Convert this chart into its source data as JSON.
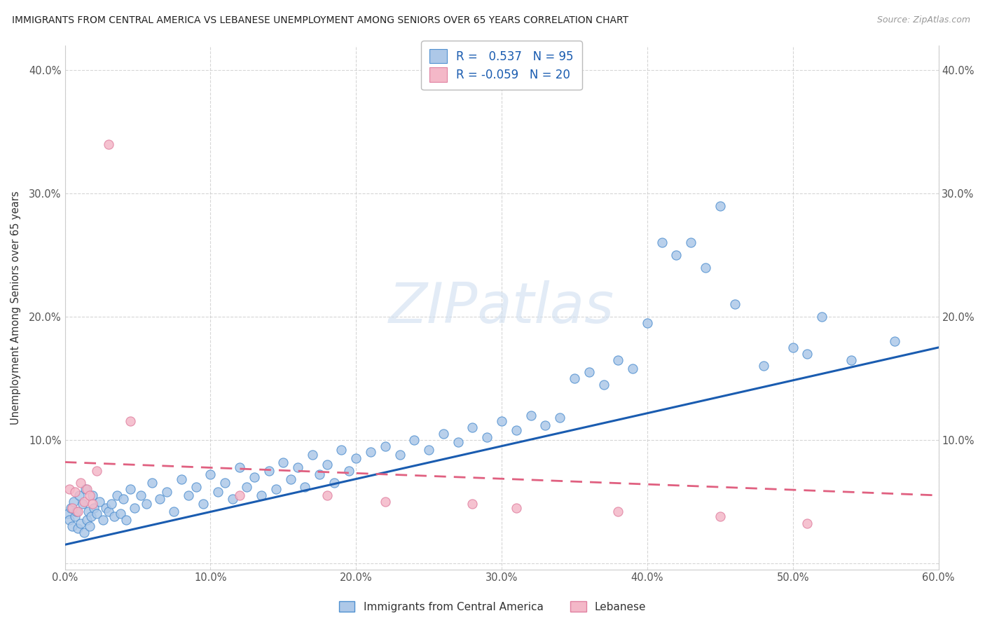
{
  "title": "IMMIGRANTS FROM CENTRAL AMERICA VS LEBANESE UNEMPLOYMENT AMONG SENIORS OVER 65 YEARS CORRELATION CHART",
  "source": "Source: ZipAtlas.com",
  "ylabel": "Unemployment Among Seniors over 65 years",
  "xlim": [
    0.0,
    0.6
  ],
  "ylim": [
    -0.005,
    0.42
  ],
  "blue_color": "#adc8e8",
  "pink_color": "#f4b8c8",
  "blue_edge_color": "#5090d0",
  "pink_edge_color": "#e080a0",
  "blue_line_color": "#1a5cb0",
  "pink_line_color": "#e06080",
  "watermark_color": "#d0dff0",
  "bottom_legend_blue": "Immigrants from Central America",
  "bottom_legend_pink": "Lebanese",
  "blue_x": [
    0.002,
    0.003,
    0.004,
    0.005,
    0.006,
    0.007,
    0.008,
    0.009,
    0.01,
    0.011,
    0.012,
    0.013,
    0.014,
    0.015,
    0.016,
    0.017,
    0.018,
    0.019,
    0.02,
    0.022,
    0.024,
    0.026,
    0.028,
    0.03,
    0.032,
    0.034,
    0.036,
    0.038,
    0.04,
    0.042,
    0.045,
    0.048,
    0.052,
    0.056,
    0.06,
    0.065,
    0.07,
    0.075,
    0.08,
    0.085,
    0.09,
    0.095,
    0.1,
    0.105,
    0.11,
    0.115,
    0.12,
    0.125,
    0.13,
    0.135,
    0.14,
    0.145,
    0.15,
    0.155,
    0.16,
    0.165,
    0.17,
    0.175,
    0.18,
    0.185,
    0.19,
    0.195,
    0.2,
    0.21,
    0.22,
    0.23,
    0.24,
    0.25,
    0.26,
    0.27,
    0.28,
    0.29,
    0.3,
    0.31,
    0.32,
    0.33,
    0.34,
    0.35,
    0.36,
    0.37,
    0.38,
    0.39,
    0.4,
    0.41,
    0.42,
    0.43,
    0.44,
    0.45,
    0.46,
    0.48,
    0.5,
    0.51,
    0.52,
    0.54,
    0.57
  ],
  "blue_y": [
    0.04,
    0.035,
    0.045,
    0.03,
    0.05,
    0.038,
    0.042,
    0.028,
    0.055,
    0.032,
    0.048,
    0.025,
    0.06,
    0.035,
    0.042,
    0.03,
    0.038,
    0.055,
    0.045,
    0.04,
    0.05,
    0.035,
    0.045,
    0.042,
    0.048,
    0.038,
    0.055,
    0.04,
    0.052,
    0.035,
    0.06,
    0.045,
    0.055,
    0.048,
    0.065,
    0.052,
    0.058,
    0.042,
    0.068,
    0.055,
    0.062,
    0.048,
    0.072,
    0.058,
    0.065,
    0.052,
    0.078,
    0.062,
    0.07,
    0.055,
    0.075,
    0.06,
    0.082,
    0.068,
    0.078,
    0.062,
    0.088,
    0.072,
    0.08,
    0.065,
    0.092,
    0.075,
    0.085,
    0.09,
    0.095,
    0.088,
    0.1,
    0.092,
    0.105,
    0.098,
    0.11,
    0.102,
    0.115,
    0.108,
    0.12,
    0.112,
    0.118,
    0.15,
    0.155,
    0.145,
    0.165,
    0.158,
    0.195,
    0.26,
    0.25,
    0.26,
    0.24,
    0.29,
    0.21,
    0.16,
    0.175,
    0.17,
    0.2,
    0.165,
    0.18
  ],
  "pink_x": [
    0.003,
    0.005,
    0.007,
    0.009,
    0.011,
    0.013,
    0.015,
    0.017,
    0.019,
    0.022,
    0.03,
    0.045,
    0.12,
    0.18,
    0.22,
    0.28,
    0.31,
    0.38,
    0.45,
    0.51
  ],
  "pink_y": [
    0.06,
    0.045,
    0.058,
    0.042,
    0.065,
    0.05,
    0.06,
    0.055,
    0.048,
    0.075,
    0.34,
    0.115,
    0.055,
    0.055,
    0.05,
    0.048,
    0.045,
    0.042,
    0.038,
    0.032
  ],
  "blue_line_x": [
    0.0,
    0.6
  ],
  "blue_line_y": [
    0.015,
    0.175
  ],
  "pink_line_x": [
    0.0,
    0.6
  ],
  "pink_line_y": [
    0.082,
    0.055
  ]
}
